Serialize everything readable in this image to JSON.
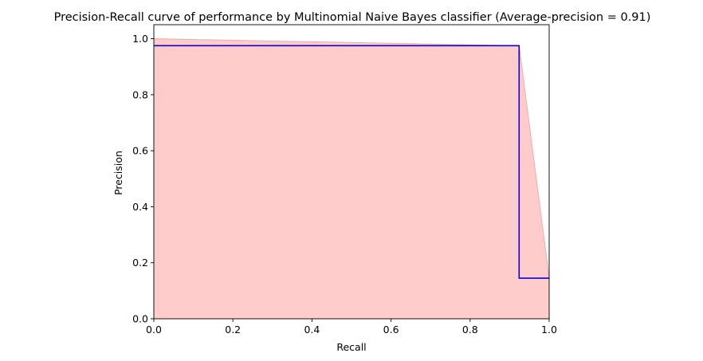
{
  "chart_data": {
    "type": "area",
    "title": "Precision-Recall curve of performance by Multinomial Naive Bayes classifier (Average-precision = 0.91)",
    "xlabel": "Recall",
    "ylabel": "Precision",
    "xlim": [
      0.0,
      1.0
    ],
    "ylim": [
      0.0,
      1.05
    ],
    "xticks": [
      0.0,
      0.2,
      0.4,
      0.6,
      0.8,
      1.0
    ],
    "yticks": [
      0.0,
      0.2,
      0.4,
      0.6,
      0.8,
      1.0
    ],
    "xtick_labels": [
      "0.0",
      "0.2",
      "0.4",
      "0.6",
      "0.8",
      "1.0"
    ],
    "ytick_labels": [
      "0.0",
      "0.2",
      "0.4",
      "0.6",
      "0.8",
      "1.0"
    ],
    "grid": false,
    "series": [
      {
        "kind": "fill",
        "color": "#ffcccc",
        "edge_color": "#f2aaaa",
        "points": [
          [
            0.0,
            1.0
          ],
          [
            0.924,
            0.975
          ],
          [
            1.0,
            0.145
          ]
        ]
      },
      {
        "kind": "step-line",
        "color": "#0000ff",
        "points": [
          [
            0.0,
            0.975
          ],
          [
            0.924,
            0.975
          ],
          [
            0.924,
            0.145
          ],
          [
            1.0,
            0.145
          ]
        ]
      }
    ]
  }
}
